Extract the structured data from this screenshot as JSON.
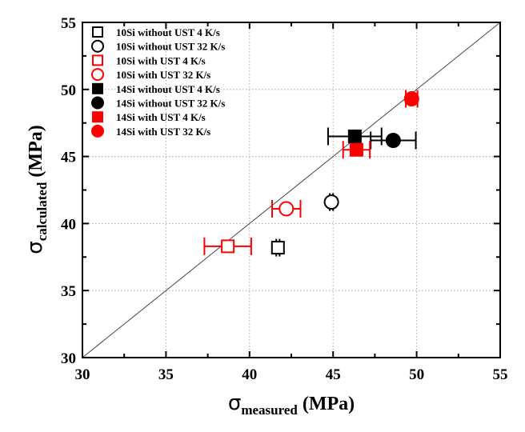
{
  "chart_data": {
    "type": "scatter",
    "title": "",
    "xlabel": {
      "symbol": "σ",
      "subscript": "measured",
      "unit": " (MPa)"
    },
    "ylabel": {
      "symbol": "σ",
      "subscript": "calculated",
      "unit": " (MPa)"
    },
    "xlim": [
      30,
      55
    ],
    "ylim": [
      30,
      55
    ],
    "xticks": [
      30,
      35,
      40,
      45,
      50,
      55
    ],
    "yticks": [
      30,
      35,
      40,
      45,
      50,
      55
    ],
    "xtick_labels": [
      "30",
      "35",
      "40",
      "45",
      "50",
      "55"
    ],
    "ytick_labels": [
      "30",
      "35",
      "40",
      "45",
      "50",
      "55"
    ],
    "grid": true,
    "reference_line": {
      "label": "y = x",
      "from": [
        30,
        30
      ],
      "to": [
        55,
        55
      ]
    },
    "legend_position": "top-left",
    "series": [
      {
        "name": "10Si without UST 4 K/s",
        "marker": "square",
        "filled": false,
        "color": "#000000",
        "x": 41.7,
        "y": 38.2,
        "xerr": 0.1,
        "yerr": 0.3
      },
      {
        "name": "10Si without UST 32 K/s",
        "marker": "circle",
        "filled": false,
        "color": "#000000",
        "x": 44.9,
        "y": 41.6,
        "xerr": 0.1,
        "yerr": 0.4
      },
      {
        "name": "10Si with UST 4 K/s",
        "marker": "square",
        "filled": false,
        "color": "#ff0000",
        "x": 38.7,
        "y": 38.3,
        "xerr": 1.4,
        "yerr": 0
      },
      {
        "name": "10Si with UST 32 K/s",
        "marker": "circle",
        "filled": false,
        "color": "#ff0000",
        "x": 42.2,
        "y": 41.1,
        "xerr": 0.85,
        "yerr": 0
      },
      {
        "name": "14Si without UST 4 K/s",
        "marker": "square",
        "filled": true,
        "color": "#000000",
        "x": 46.3,
        "y": 46.5,
        "xerr": 1.6,
        "yerr": 0
      },
      {
        "name": "14Si without UST 32 K/s",
        "marker": "circle",
        "filled": true,
        "color": "#000000",
        "x": 48.6,
        "y": 46.2,
        "xerr": 1.35,
        "yerr": 0
      },
      {
        "name": "14Si with UST 4 K/s",
        "marker": "square",
        "filled": true,
        "color": "#ff0000",
        "x": 46.4,
        "y": 45.5,
        "xerr": 0.8,
        "yerr": 0
      },
      {
        "name": "14Si with UST 32 K/s",
        "marker": "circle",
        "filled": true,
        "color": "#ff0000",
        "x": 49.7,
        "y": 49.3,
        "xerr": 0.35,
        "yerr": 0.3
      }
    ]
  }
}
